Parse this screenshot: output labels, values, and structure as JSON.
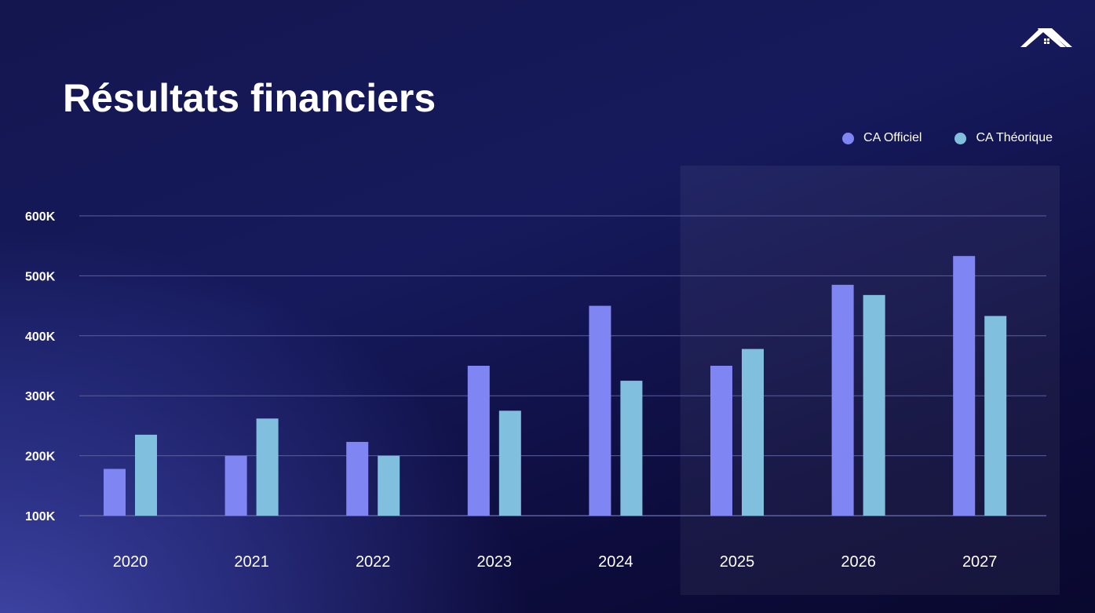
{
  "title": "Résultats financiers",
  "colors": {
    "official": "#8085f4",
    "theoretical": "#80c0de",
    "grid": "#5a5f9e",
    "highlight": "rgba(255,255,255,0.055)"
  },
  "icons": {
    "logo": "house-roof-logo-icon"
  },
  "chart_data": {
    "type": "bar",
    "title": "Résultats financiers",
    "xlabel": "",
    "ylabel": "",
    "categories": [
      "2020",
      "2021",
      "2022",
      "2023",
      "2024",
      "2025",
      "2026",
      "2027"
    ],
    "series": [
      {
        "name": "CA Officiel",
        "values": [
          178000,
          200000,
          223000,
          350000,
          450000,
          350000,
          485000,
          533000
        ]
      },
      {
        "name": "CA Théorique",
        "values": [
          235000,
          262000,
          200000,
          275000,
          325000,
          378000,
          468000,
          433000
        ]
      }
    ],
    "ylim": [
      100000,
      600000
    ],
    "y_ticks": [
      {
        "value": 100000,
        "label": "100K"
      },
      {
        "value": 200000,
        "label": "200K"
      },
      {
        "value": 300000,
        "label": "300K"
      },
      {
        "value": 400000,
        "label": "400K"
      },
      {
        "value": 500000,
        "label": "500K"
      },
      {
        "value": 600000,
        "label": "600K"
      }
    ],
    "highlighted_categories": [
      "2025",
      "2026",
      "2027"
    ],
    "grid": true,
    "legend_position": "top-right"
  }
}
